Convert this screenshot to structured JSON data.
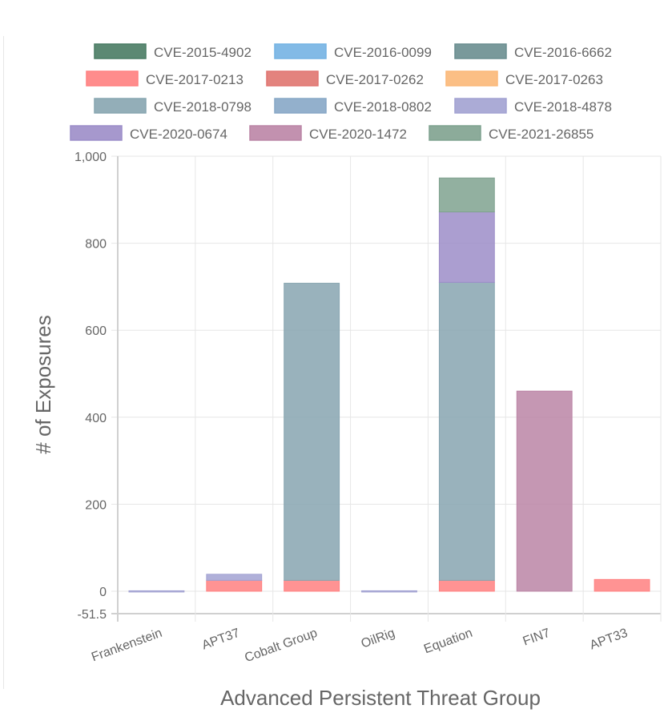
{
  "chart_data": {
    "type": "bar",
    "stacked": true,
    "xlabel": "Advanced Persistent Threat Group",
    "ylabel": "# of Exposures",
    "categories": [
      "Frankenstein",
      "APT37",
      "Cobalt Group",
      "OilRig",
      "Equation",
      "FIN7",
      "APT33"
    ],
    "ylim": [
      -51.5,
      1000
    ],
    "yticks": [
      {
        "v": -51.5,
        "label": "-51.5"
      },
      {
        "v": 0,
        "label": "0"
      },
      {
        "v": 200,
        "label": "200"
      },
      {
        "v": 400,
        "label": "400"
      },
      {
        "v": 600,
        "label": "600"
      },
      {
        "v": 800,
        "label": "800"
      },
      {
        "v": 1000,
        "label": "1,000"
      }
    ],
    "grid": true,
    "legend_position": "top",
    "series": [
      {
        "name": "CVE-2015-4902",
        "color": "#4a7c64",
        "values": [
          0,
          0,
          0,
          0,
          0,
          0,
          0
        ]
      },
      {
        "name": "CVE-2016-0099",
        "color": "#74b3e3",
        "values": [
          0,
          0,
          0,
          0,
          0,
          0,
          0
        ]
      },
      {
        "name": "CVE-2016-6662",
        "color": "#6a8e90",
        "values": [
          0,
          0,
          0,
          0,
          0,
          0,
          0
        ]
      },
      {
        "name": "CVE-2017-0213",
        "color": "#ff8080",
        "values": [
          0,
          25,
          25,
          0,
          25,
          0,
          27
        ]
      },
      {
        "name": "CVE-2017-0262",
        "color": "#e07570",
        "values": [
          0,
          0,
          0,
          0,
          0,
          0,
          0
        ]
      },
      {
        "name": "CVE-2017-0263",
        "color": "#fbb878",
        "values": [
          0,
          0,
          0,
          0,
          0,
          0,
          0
        ]
      },
      {
        "name": "CVE-2018-0798",
        "color": "#87a5b0",
        "values": [
          0,
          0,
          683,
          0,
          685,
          0,
          0
        ]
      },
      {
        "name": "CVE-2018-0802",
        "color": "#87a7c6",
        "values": [
          0,
          0,
          0,
          0,
          0,
          0,
          0
        ]
      },
      {
        "name": "CVE-2018-4878",
        "color": "#a2a2d2",
        "values": [
          1,
          14,
          0,
          1,
          0,
          0,
          0
        ]
      },
      {
        "name": "CVE-2020-0674",
        "color": "#9c8dc8",
        "values": [
          0,
          0,
          0,
          0,
          162,
          0,
          0
        ]
      },
      {
        "name": "CVE-2020-1472",
        "color": "#bb85a6",
        "values": [
          0,
          0,
          0,
          0,
          0,
          460,
          0
        ]
      },
      {
        "name": "CVE-2021-26855",
        "color": "#7fa28f",
        "values": [
          0,
          0,
          0,
          0,
          78,
          0,
          0
        ]
      }
    ]
  }
}
